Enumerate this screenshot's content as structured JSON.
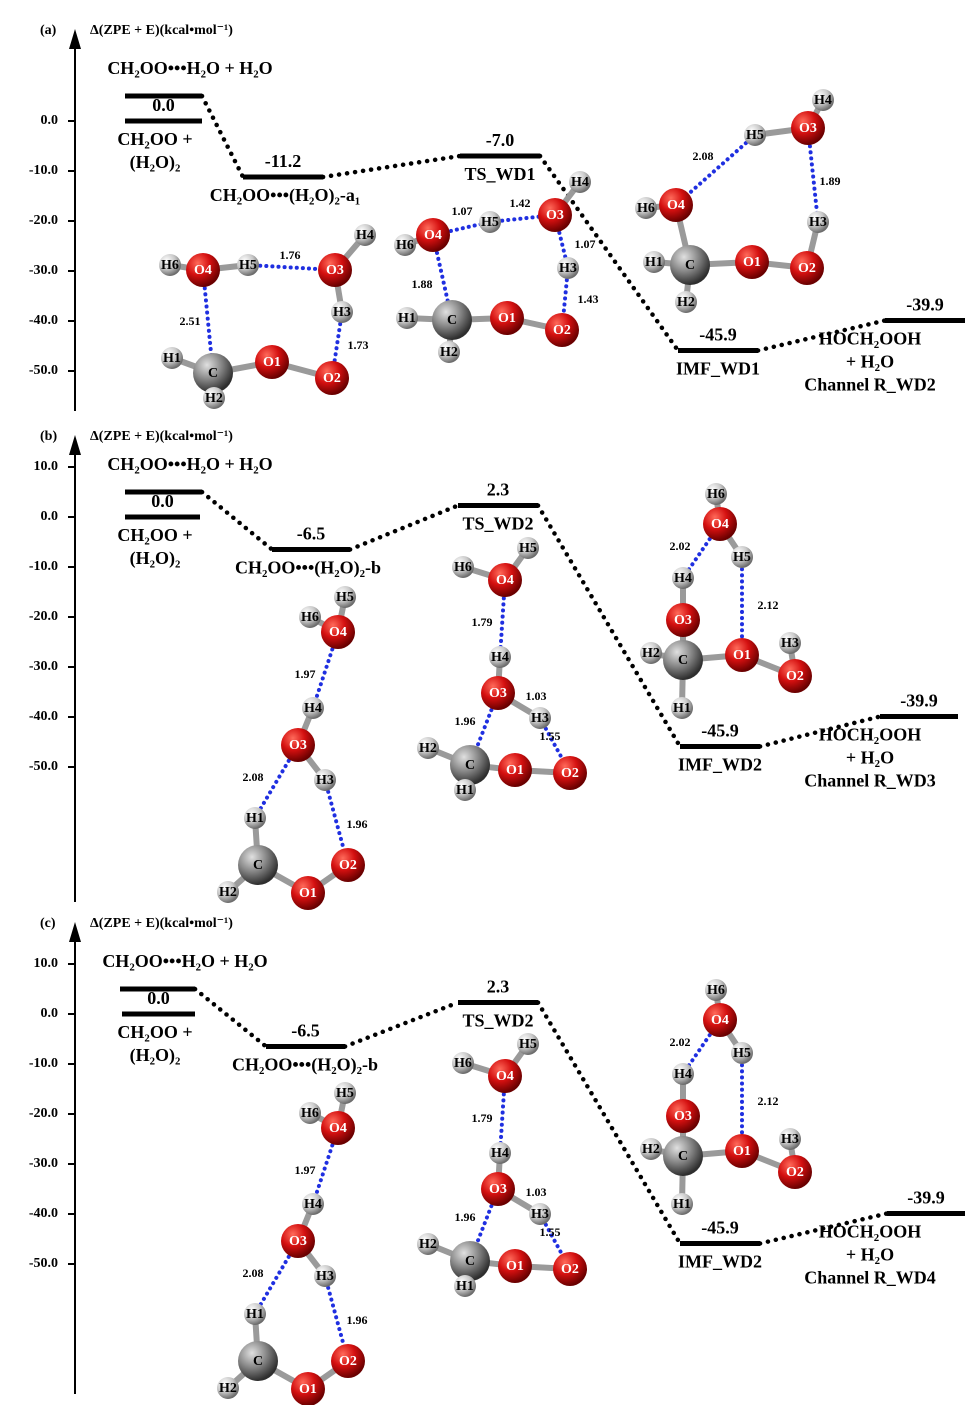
{
  "chart_data": [
    {
      "type": "energy-profile",
      "panel": "(a)",
      "ylabel": "Δ(ZPE + E)(kcal•mol⁻¹)",
      "ylim": [
        -58,
        16
      ],
      "yticks": [
        {
          "value": 0,
          "label": "0.0"
        },
        {
          "value": -10,
          "label": "-10.0"
        },
        {
          "value": -20,
          "label": "-20.0"
        },
        {
          "value": -30,
          "label": "-30.0"
        },
        {
          "value": -40,
          "label": "-40.0"
        },
        {
          "value": -50,
          "label": "-50.0"
        }
      ],
      "levels": {
        "names": [
          [
            "CH₂OO•••H₂O + H₂O"
          ],
          [
            "CH₂OO +",
            "(H₂O)₂"
          ],
          [
            "CH₂OO•••(H₂O)₂-a₁"
          ],
          [
            "TS_WD1"
          ],
          [
            "IMF_WD1"
          ],
          [
            "HOCH₂OOH",
            "+ H₂O",
            "Channel R_WD2"
          ]
        ],
        "values": [
          5,
          0,
          -11.2,
          -7.0,
          -45.9,
          -39.9
        ],
        "value_labels": [
          null,
          "0.0",
          "-11.2",
          "-7.0",
          "-45.9",
          "-39.9"
        ]
      },
      "molecules": [
        {
          "atoms": [
            "H6",
            "O4",
            "H5",
            "O3",
            "H4",
            "H3",
            "O2",
            "O1",
            "C",
            "H1",
            "H2"
          ],
          "bond_lengths": [
            2.51,
            1.76,
            1.73
          ]
        },
        {
          "atoms": [
            "H6",
            "O4",
            "H5",
            "O3",
            "H4",
            "H3",
            "O2",
            "O1",
            "C",
            "H1",
            "H2"
          ],
          "bond_lengths": [
            1.07,
            1.42,
            1.07,
            1.43,
            1.88
          ]
        },
        {
          "atoms": [
            "H4",
            "O3",
            "H5",
            "O4",
            "H6",
            "C",
            "H1",
            "H2",
            "O1",
            "O2",
            "H3"
          ],
          "bond_lengths": [
            2.08,
            1.89
          ]
        }
      ]
    },
    {
      "type": "energy-profile",
      "panel": "(b)",
      "ylabel": "Δ(ZPE + E)(kcal•mol⁻¹)",
      "ylim": [
        -77,
        14
      ],
      "yticks": [
        {
          "value": 10,
          "label": "10.0"
        },
        {
          "value": 0,
          "label": "0.0"
        },
        {
          "value": -10,
          "label": "-10.0"
        },
        {
          "value": -20,
          "label": "-20.0"
        },
        {
          "value": -30,
          "label": "-30.0"
        },
        {
          "value": -40,
          "label": "-40.0"
        },
        {
          "value": -50,
          "label": "-50.0"
        }
      ],
      "levels": {
        "names": [
          [
            "CH₂OO•••H₂O + H₂O"
          ],
          [
            "CH₂OO +",
            "(H₂O)₂"
          ],
          [
            "CH₂OO•••(H₂O)₂-b"
          ],
          [
            "TS_WD2"
          ],
          [
            "IMF_WD2"
          ],
          [
            "HOCH₂OOH",
            "+ H₂O",
            "Channel R_WD3"
          ]
        ],
        "values": [
          5,
          0,
          -6.5,
          2.3,
          -45.9,
          -39.9
        ],
        "value_labels": [
          null,
          "0.0",
          "-6.5",
          "2.3",
          "-45.9",
          "-39.9"
        ]
      },
      "molecules": [
        {
          "atoms": [
            "H5",
            "H6",
            "O4",
            "H4",
            "O3",
            "H3",
            "H1",
            "C",
            "H2",
            "O1",
            "O2"
          ],
          "bond_lengths": [
            1.97,
            2.08,
            1.96
          ]
        },
        {
          "atoms": [
            "H6",
            "O4",
            "H5",
            "H4",
            "O3",
            "H3",
            "C",
            "H2",
            "H1",
            "O1",
            "O2"
          ],
          "bond_lengths": [
            1.79,
            1.03,
            1.96,
            1.55
          ]
        },
        {
          "atoms": [
            "H6",
            "O4",
            "H4",
            "O3",
            "H5",
            "O1",
            "O2",
            "H3",
            "C",
            "H2",
            "H1"
          ],
          "bond_lengths": [
            2.02,
            2.12
          ]
        }
      ]
    },
    {
      "type": "energy-profile",
      "panel": "(c)",
      "ylabel": "Δ(ZPE + E)(kcal•mol⁻¹)",
      "ylim": [
        -76,
        16
      ],
      "yticks": [
        {
          "value": 10,
          "label": "10.0"
        },
        {
          "value": 0,
          "label": "0.0"
        },
        {
          "value": -10,
          "label": "-10.0"
        },
        {
          "value": -20,
          "label": "-20.0"
        },
        {
          "value": -30,
          "label": "-30.0"
        },
        {
          "value": -40,
          "label": "-40.0"
        },
        {
          "value": -50,
          "label": "-50.0"
        }
      ],
      "levels": {
        "names": [
          [
            "CH₂OO•••H₂O + H₂O"
          ],
          [
            "CH₂OO +",
            "(H₂O)₂"
          ],
          [
            "CH₂OO•••(H₂O)₂-b"
          ],
          [
            "TS_WD2"
          ],
          [
            "IMF_WD2"
          ],
          [
            "HOCH₂OOH",
            "+ H₂O",
            "Channel R_WD4"
          ]
        ],
        "values": [
          5,
          0,
          -6.5,
          2.3,
          -45.9,
          -39.9
        ],
        "value_labels": [
          null,
          "0.0",
          "-6.5",
          "2.3",
          "-45.9",
          "-39.9"
        ]
      },
      "molecules": [
        {
          "atoms": [
            "H5",
            "H6",
            "O4",
            "H4",
            "O3",
            "H3",
            "H1",
            "C",
            "H2",
            "O1",
            "O2"
          ],
          "bond_lengths": [
            1.97,
            2.08,
            1.96
          ]
        },
        {
          "atoms": [
            "H6",
            "O4",
            "H5",
            "H4",
            "O3",
            "H3",
            "C",
            "H2",
            "H1",
            "O1",
            "O2"
          ],
          "bond_lengths": [
            1.79,
            1.03,
            1.96,
            1.55
          ]
        },
        {
          "atoms": [
            "H6",
            "O4",
            "H4",
            "O3",
            "H5",
            "O1",
            "O2",
            "H3",
            "C",
            "H2",
            "H1"
          ],
          "bond_lengths": [
            2.02,
            2.12
          ]
        }
      ]
    }
  ]
}
